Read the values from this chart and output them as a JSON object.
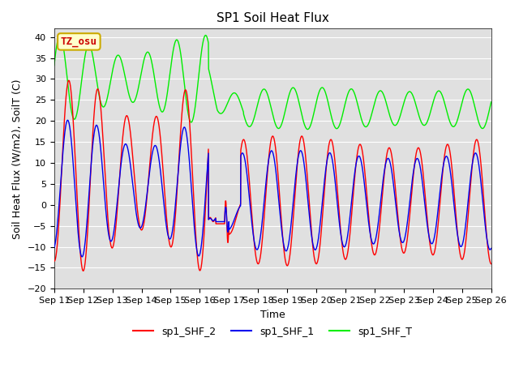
{
  "title": "SP1 Soil Heat Flux",
  "xlabel": "Time",
  "ylabel": "Soil Heat Flux (W/m2), SoilT (C)",
  "ylim": [
    -20,
    42
  ],
  "yticks": [
    -20,
    -15,
    -10,
    -5,
    0,
    5,
    10,
    15,
    20,
    25,
    30,
    35,
    40
  ],
  "xtick_labels": [
    "Sep 11",
    "Sep 12",
    "Sep 13",
    "Sep 14",
    "Sep 15",
    "Sep 16",
    "Sep 17",
    "Sep 18",
    "Sep 19",
    "Sep 20",
    "Sep 21",
    "Sep 22",
    "Sep 23",
    "Sep 24",
    "Sep 25",
    "Sep 26"
  ],
  "bg_color": "#e0e0e0",
  "line_colors": {
    "sp1_SHF_2": "#ff0000",
    "sp1_SHF_1": "#0000ee",
    "sp1_SHF_T": "#00ee00"
  },
  "annotation_text": "TZ_osu",
  "annotation_bg": "#ffffcc",
  "annotation_border": "#ccaa00",
  "title_fontsize": 11,
  "axis_label_fontsize": 9,
  "tick_fontsize": 8,
  "legend_fontsize": 9
}
